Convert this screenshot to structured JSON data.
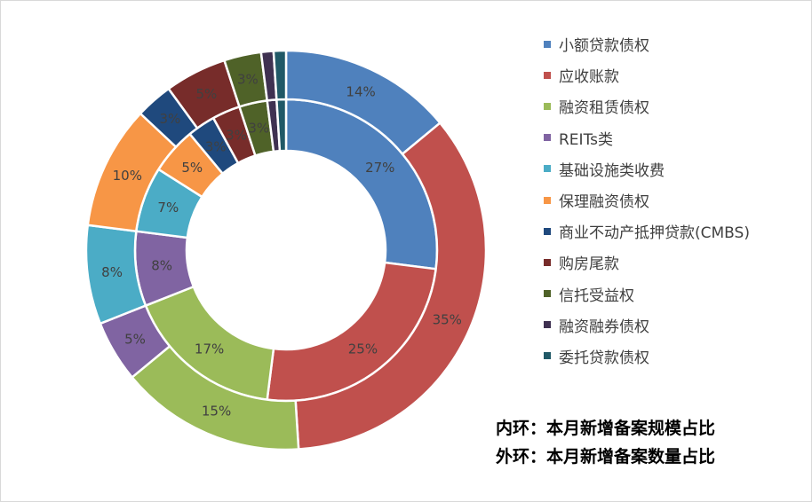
{
  "chart_data": {
    "type": "pie",
    "style": "double-donut",
    "categories": [
      "小额贷款债权",
      "应收账款",
      "融资租赁债权",
      "REITs类",
      "基础设施类收费",
      "保理融资债权",
      "商业不动产抵押贷款(CMBS)",
      "购房尾款",
      "信托受益权",
      "融资融券债权",
      "委托贷款债权"
    ],
    "colors": [
      "#4f81bd",
      "#c0504d",
      "#9bbb59",
      "#8064a2",
      "#4bacc6",
      "#f79646",
      "#1f497d",
      "#772c2a",
      "#4f6228",
      "#3f3151",
      "#215967"
    ],
    "series": [
      {
        "name": "内环",
        "values": [
          27,
          25,
          17,
          8,
          7,
          5,
          3,
          3,
          3,
          1,
          1
        ],
        "labels": [
          "27%",
          "25%",
          "17%",
          "8%",
          "7%",
          "5%",
          "3%",
          "3%",
          "3%",
          "",
          ""
        ]
      },
      {
        "name": "外环",
        "values": [
          14,
          35,
          15,
          5,
          8,
          10,
          3,
          5,
          3,
          1,
          1
        ],
        "labels": [
          "14%",
          "35%",
          "15%",
          "5%",
          "8%",
          "10%",
          "3%",
          "5%",
          "3%",
          "",
          ""
        ]
      }
    ],
    "legend_position": "right"
  },
  "notes": {
    "inner": "内环：本月新增备案规模占比",
    "outer": "外环：本月新增备案数量占比"
  }
}
